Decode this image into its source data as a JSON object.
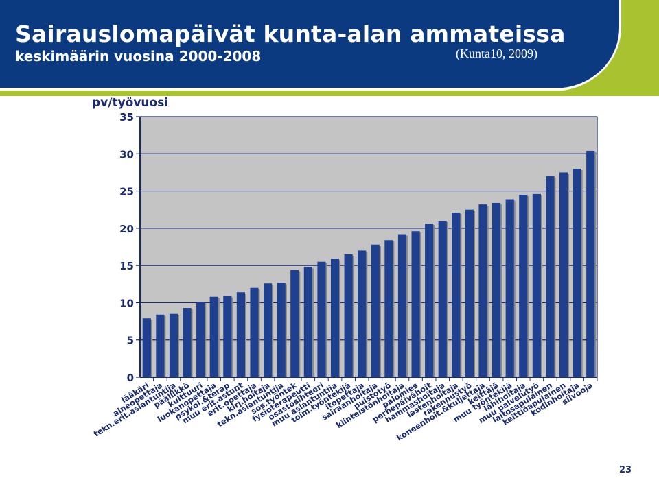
{
  "header": {
    "title": "Sairauslomapäivät kunta-alan ammateissa",
    "subtitle": "keskimäärin vuosina 2000-2008",
    "source": "(Kunta10, 2009)"
  },
  "colors": {
    "header_blue": "#0b3a80",
    "accent_green": "#a8c230",
    "bar": "#1f3f8f",
    "plot_bg": "#c4c4c4",
    "text": "#1a2a6e"
  },
  "page_number": "23",
  "chart_data": {
    "type": "bar",
    "ylabel": "pv/työvuosi",
    "xlabel": "",
    "ylim": [
      0,
      35
    ],
    "yticks": [
      0,
      5,
      10,
      15,
      20,
      25,
      30,
      35
    ],
    "grid": true,
    "categories": [
      "lääkäri",
      "aineopettaja",
      "tekn.erit.asiantuntija",
      "päällikkö",
      "kulttuuri",
      "luokanopettaja",
      "psykol.&terap",
      "muu erit.astunt",
      "erit.opettaja",
      "kirj.hoitaja",
      "tekn.asiantuntija",
      "sos.työntek",
      "fysioterapeutti",
      "osastosihteeri",
      "muu asiantuntija",
      "toim.työntekijä",
      "itopettaja",
      "sairaanhoitaja",
      "puistotyö",
      "kiinteistönhoitaja",
      "palomies",
      "perhepäivähoit",
      "hammashoitaja",
      "lastenhoitaja",
      "rakennustyö",
      "koneenhoit.&kuljettaja",
      "keittäjä",
      "muu työntekijä",
      "lähihoitaja",
      "muu palvelutyö",
      "laitosapulainen",
      "keittiöapulainen",
      "kodinhoitaja",
      "siivooja"
    ],
    "values": [
      7.9,
      8.4,
      8.5,
      9.3,
      10.1,
      10.8,
      10.9,
      11.4,
      12.0,
      12.6,
      12.7,
      14.4,
      14.8,
      15.5,
      15.9,
      16.5,
      17.0,
      17.8,
      18.4,
      19.2,
      19.6,
      20.6,
      21.0,
      22.1,
      22.5,
      23.2,
      23.4,
      23.9,
      24.5,
      24.6,
      27.0,
      27.5,
      28.0,
      30.4
    ]
  }
}
